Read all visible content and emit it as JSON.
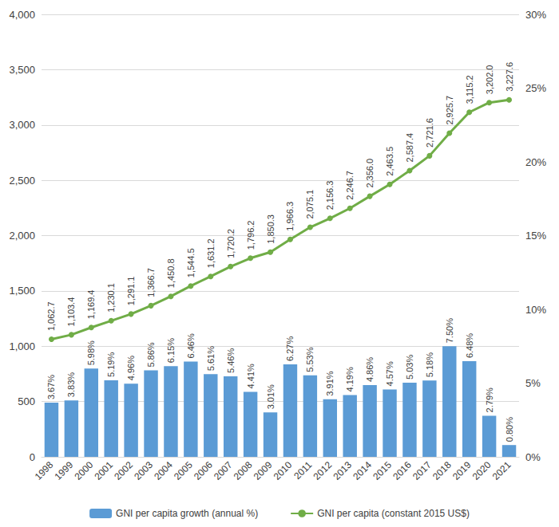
{
  "chart_data": {
    "type": "bar",
    "categories": [
      "1998",
      "1999",
      "2000",
      "2001",
      "2002",
      "2003",
      "2004",
      "2005",
      "2006",
      "2007",
      "2008",
      "2009",
      "2010",
      "2011",
      "2012",
      "2013",
      "2014",
      "2015",
      "2016",
      "2017",
      "2018",
      "2019",
      "2020",
      "2021"
    ],
    "series": [
      {
        "name": "GNI per capita growth (annual %)",
        "type": "bar",
        "color": "#5b9bd5",
        "axis": "y2",
        "values": [
          3.67,
          3.83,
          5.98,
          5.19,
          4.96,
          5.86,
          6.15,
          6.46,
          5.61,
          5.46,
          4.41,
          3.01,
          6.27,
          5.53,
          3.91,
          4.19,
          4.86,
          4.57,
          5.03,
          5.18,
          7.5,
          6.48,
          2.79,
          0.8
        ],
        "value_labels": [
          "3.67%",
          "3.83%",
          "5.98%",
          "5.19%",
          "4.96%",
          "5.86%",
          "6.15%",
          "6.46%",
          "5.61%",
          "5.46%",
          "4.41%",
          "3.01%",
          "6.27%",
          "5.53%",
          "3.91%",
          "4.19%",
          "4.86%",
          "4.57%",
          "5.03%",
          "5.18%",
          "7.50%",
          "6.48%",
          "2.79%",
          "0.80%"
        ]
      },
      {
        "name": "GNI per capita (constant 2015 US$)",
        "type": "line",
        "color": "#70ad47",
        "marker": "circle",
        "values": [
          1062.7,
          1103.4,
          1169.4,
          1230.1,
          1291.1,
          1366.7,
          1450.8,
          1544.5,
          1631.2,
          1720.2,
          1796.2,
          1850.3,
          1966.3,
          2075.1,
          2156.3,
          2246.7,
          2356.0,
          2463.5,
          2587.4,
          2721.6,
          2925.7,
          3115.2,
          3202.0,
          3227.6
        ],
        "value_labels": [
          "1,062.7",
          "1,103.4",
          "1,169.4",
          "1,230.1",
          "1,291.1",
          "1,366.7",
          "1,450.8",
          "1,544.5",
          "1,631.2",
          "1,720.2",
          "1,796.2",
          "1,850.3",
          "1,966.3",
          "2,075.1",
          "2,156.3",
          "2,246.7",
          "2,356.0",
          "2,463.5",
          "2,587.4",
          "2,721.6",
          "2,925.7",
          "3,115.2",
          "3,202.0",
          "3,227.6"
        ]
      }
    ],
    "ylim": [
      0,
      4000
    ],
    "yticks": [
      0,
      500,
      {
        "value": 1000,
        "label": "1,000"
      },
      {
        "value": 1500,
        "label": "1,500"
      },
      {
        "value": 2000,
        "label": "2,000"
      },
      {
        "value": 2500,
        "label": "2,500"
      },
      {
        "value": 3000,
        "label": "3,000"
      },
      {
        "value": 3500,
        "label": "3,500"
      },
      {
        "value": 4000,
        "label": "4,000"
      }
    ],
    "y2lim": [
      0,
      30
    ],
    "y2ticks": [
      {
        "value": 0,
        "label": "0%"
      },
      {
        "value": 5,
        "label": "5%"
      },
      {
        "value": 10,
        "label": "10%"
      },
      {
        "value": 15,
        "label": "15%"
      },
      {
        "value": 20,
        "label": "20%"
      },
      {
        "value": 25,
        "label": "25%"
      },
      {
        "value": 30,
        "label": "30%"
      }
    ],
    "grid": true,
    "legend": "bottom",
    "data_labels": true
  }
}
